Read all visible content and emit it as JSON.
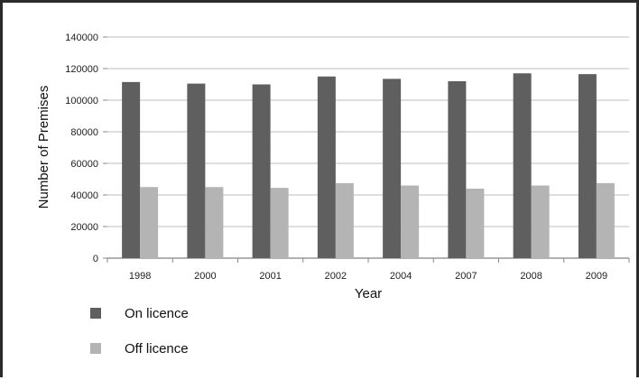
{
  "chart_data": {
    "type": "bar",
    "title": "",
    "xlabel": "Year",
    "ylabel": "Number of Premises",
    "categories": [
      "1998",
      "2000",
      "2001",
      "2002",
      "2004",
      "2007",
      "2008",
      "2009"
    ],
    "ylim": [
      0,
      140000
    ],
    "yticks": [
      "0",
      "20000",
      "40000",
      "60000",
      "80000",
      "100000",
      "120000",
      "140000"
    ],
    "grid": true,
    "legend": "bottom-left",
    "series": [
      {
        "name": "On licence",
        "color": "#5f5f5f",
        "values": [
          111500,
          110500,
          110000,
          115000,
          113500,
          112000,
          117000,
          116500
        ]
      },
      {
        "name": "Off licence",
        "color": "#b4b4b4",
        "values": [
          45000,
          45000,
          44500,
          47500,
          46000,
          44000,
          46000,
          47500
        ]
      }
    ]
  }
}
